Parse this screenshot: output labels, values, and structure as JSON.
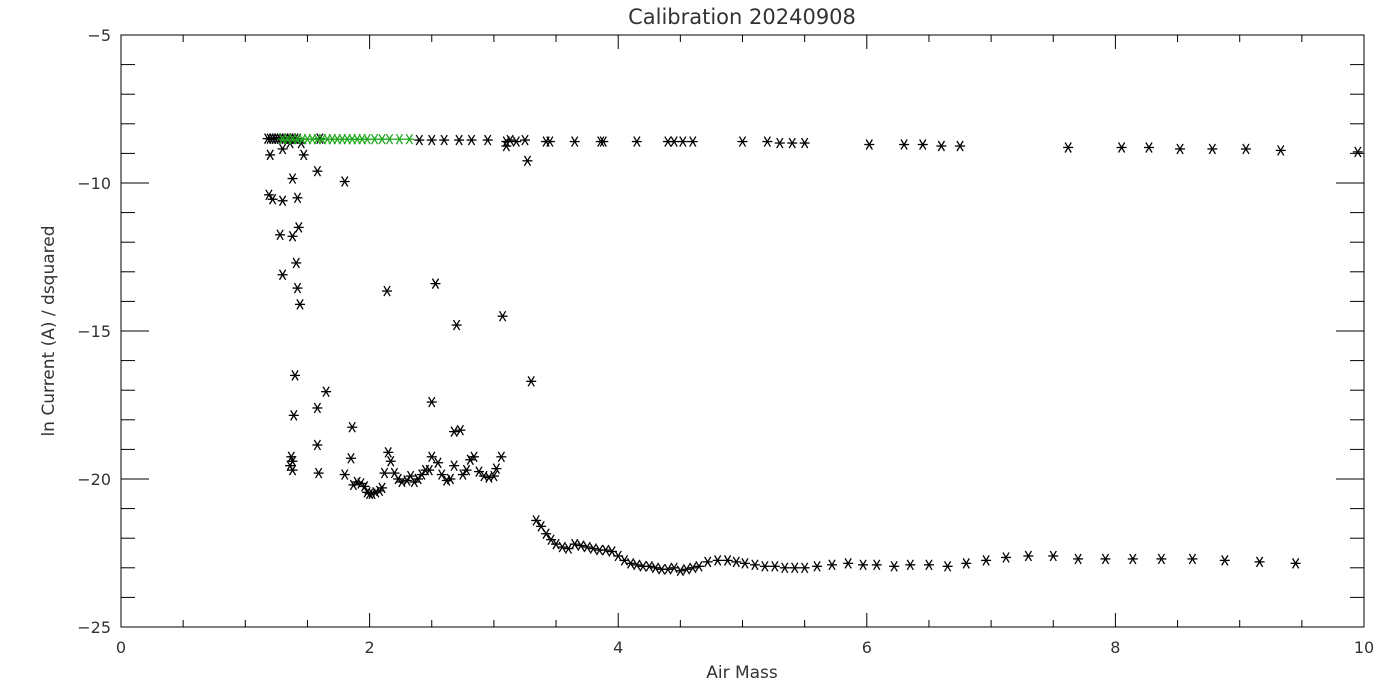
{
  "chart_data": {
    "type": "scatter",
    "title": "Calibration 20240908",
    "xlabel": "Air Mass",
    "ylabel": "ln Current (A) / dsquared",
    "xlim": [
      0,
      10
    ],
    "ylim": [
      -25,
      -5
    ],
    "x_ticks": [
      0,
      2,
      4,
      6,
      8,
      10
    ],
    "y_ticks": [
      -25,
      -20,
      -15,
      -10,
      -5
    ],
    "x_tick_labels": [
      "0",
      "2",
      "4",
      "6",
      "8",
      "10"
    ],
    "y_tick_labels": [
      "−25",
      "−20",
      "−15",
      "−10",
      "−5"
    ],
    "x_minor_step": 0.5,
    "y_minor_step": 1,
    "marker": "asterisk",
    "grid": false,
    "series": [
      {
        "color": "#000000",
        "points": [
          [
            1.18,
            -8.5
          ],
          [
            1.2,
            -8.5
          ],
          [
            1.22,
            -8.5
          ],
          [
            1.24,
            -8.5
          ],
          [
            1.26,
            -8.5
          ],
          [
            1.28,
            -8.5
          ],
          [
            1.3,
            -8.5
          ],
          [
            1.32,
            -8.5
          ],
          [
            1.34,
            -8.5
          ],
          [
            1.36,
            -8.5
          ],
          [
            1.38,
            -8.5
          ],
          [
            1.4,
            -8.5
          ],
          [
            1.42,
            -8.5
          ],
          [
            1.2,
            -9.05
          ],
          [
            1.3,
            -8.85
          ],
          [
            1.36,
            -8.65
          ],
          [
            1.45,
            -8.65
          ],
          [
            1.47,
            -9.05
          ],
          [
            1.58,
            -9.6
          ],
          [
            1.8,
            -9.95
          ],
          [
            1.19,
            -10.4
          ],
          [
            1.22,
            -10.55
          ],
          [
            1.3,
            -10.6
          ],
          [
            1.38,
            -9.85
          ],
          [
            1.42,
            -10.5
          ],
          [
            1.28,
            -11.75
          ],
          [
            1.38,
            -11.8
          ],
          [
            1.43,
            -11.5
          ],
          [
            1.41,
            -12.7
          ],
          [
            1.3,
            -13.1
          ],
          [
            1.42,
            -13.55
          ],
          [
            1.44,
            -14.1
          ],
          [
            2.14,
            -13.65
          ],
          [
            2.53,
            -13.4
          ],
          [
            2.7,
            -14.8
          ],
          [
            3.07,
            -14.5
          ],
          [
            1.4,
            -16.5
          ],
          [
            1.65,
            -17.05
          ],
          [
            1.58,
            -17.6
          ],
          [
            1.39,
            -17.85
          ],
          [
            2.5,
            -17.4
          ],
          [
            3.3,
            -16.7
          ],
          [
            1.86,
            -18.25
          ],
          [
            2.68,
            -18.4
          ],
          [
            2.73,
            -18.35
          ],
          [
            1.58,
            -18.85
          ],
          [
            1.37,
            -19.25
          ],
          [
            1.38,
            -19.4
          ],
          [
            1.36,
            -19.55
          ],
          [
            1.38,
            -19.7
          ],
          [
            1.59,
            -19.8
          ],
          [
            1.8,
            -19.85
          ],
          [
            1.85,
            -19.3
          ],
          [
            1.87,
            -20.2
          ],
          [
            1.9,
            -20.1
          ],
          [
            1.93,
            -20.15
          ],
          [
            1.96,
            -20.25
          ],
          [
            1.98,
            -20.45
          ],
          [
            2.0,
            -20.5
          ],
          [
            2.02,
            -20.5
          ],
          [
            2.05,
            -20.45
          ],
          [
            2.08,
            -20.4
          ],
          [
            2.1,
            -20.3
          ],
          [
            2.12,
            -19.8
          ],
          [
            2.15,
            -19.1
          ],
          [
            2.17,
            -19.4
          ],
          [
            2.2,
            -19.8
          ],
          [
            2.23,
            -20.0
          ],
          [
            2.26,
            -20.1
          ],
          [
            2.3,
            -20.05
          ],
          [
            2.33,
            -19.9
          ],
          [
            2.36,
            -20.1
          ],
          [
            2.39,
            -20.0
          ],
          [
            2.42,
            -19.85
          ],
          [
            2.45,
            -19.7
          ],
          [
            2.48,
            -19.7
          ],
          [
            2.5,
            -19.25
          ],
          [
            2.55,
            -19.45
          ],
          [
            2.58,
            -19.85
          ],
          [
            2.62,
            -20.05
          ],
          [
            2.65,
            -20.0
          ],
          [
            2.68,
            -19.55
          ],
          [
            2.75,
            -19.85
          ],
          [
            2.78,
            -19.7
          ],
          [
            2.81,
            -19.35
          ],
          [
            2.84,
            -19.25
          ],
          [
            2.88,
            -19.75
          ],
          [
            2.92,
            -19.9
          ],
          [
            2.96,
            -19.95
          ],
          [
            3.0,
            -19.9
          ],
          [
            3.02,
            -19.65
          ],
          [
            3.06,
            -19.25
          ],
          [
            3.34,
            -21.4
          ],
          [
            3.38,
            -21.6
          ],
          [
            3.42,
            -21.85
          ],
          [
            3.46,
            -22.05
          ],
          [
            3.5,
            -22.2
          ],
          [
            3.55,
            -22.3
          ],
          [
            3.6,
            -22.35
          ],
          [
            3.65,
            -22.2
          ],
          [
            3.7,
            -22.25
          ],
          [
            3.75,
            -22.3
          ],
          [
            3.8,
            -22.35
          ],
          [
            3.85,
            -22.4
          ],
          [
            3.9,
            -22.4
          ],
          [
            3.95,
            -22.45
          ],
          [
            4.0,
            -22.6
          ],
          [
            4.05,
            -22.75
          ],
          [
            4.1,
            -22.85
          ],
          [
            4.15,
            -22.9
          ],
          [
            4.2,
            -22.95
          ],
          [
            4.25,
            -22.95
          ],
          [
            4.3,
            -23.0
          ],
          [
            4.35,
            -23.05
          ],
          [
            4.4,
            -23.05
          ],
          [
            4.45,
            -23.0
          ],
          [
            4.5,
            -23.1
          ],
          [
            4.55,
            -23.05
          ],
          [
            4.6,
            -23.0
          ],
          [
            4.65,
            -22.95
          ],
          [
            4.72,
            -22.8
          ],
          [
            4.8,
            -22.75
          ],
          [
            4.88,
            -22.75
          ],
          [
            4.95,
            -22.8
          ],
          [
            5.02,
            -22.85
          ],
          [
            5.1,
            -22.9
          ],
          [
            5.18,
            -22.95
          ],
          [
            5.26,
            -22.95
          ],
          [
            5.34,
            -23.0
          ],
          [
            5.42,
            -23.0
          ],
          [
            5.5,
            -23.0
          ],
          [
            5.6,
            -22.95
          ],
          [
            5.72,
            -22.9
          ],
          [
            5.85,
            -22.85
          ],
          [
            5.97,
            -22.9
          ],
          [
            6.08,
            -22.9
          ],
          [
            6.22,
            -22.95
          ],
          [
            6.35,
            -22.9
          ],
          [
            6.5,
            -22.9
          ],
          [
            6.65,
            -22.95
          ],
          [
            6.8,
            -22.85
          ],
          [
            6.96,
            -22.75
          ],
          [
            7.12,
            -22.65
          ],
          [
            7.3,
            -22.6
          ],
          [
            7.5,
            -22.6
          ],
          [
            7.7,
            -22.7
          ],
          [
            7.92,
            -22.7
          ],
          [
            8.14,
            -22.7
          ],
          [
            8.37,
            -22.7
          ],
          [
            8.62,
            -22.7
          ],
          [
            8.88,
            -22.75
          ],
          [
            9.16,
            -22.8
          ],
          [
            9.45,
            -22.85
          ],
          [
            1.6,
            -8.5
          ],
          [
            2.4,
            -8.55
          ],
          [
            2.5,
            -8.55
          ],
          [
            2.6,
            -8.55
          ],
          [
            2.72,
            -8.55
          ],
          [
            2.82,
            -8.55
          ],
          [
            2.95,
            -8.55
          ],
          [
            3.1,
            -8.6
          ],
          [
            3.13,
            -8.55
          ],
          [
            3.18,
            -8.6
          ],
          [
            3.25,
            -8.55
          ],
          [
            3.1,
            -8.75
          ],
          [
            3.27,
            -9.25
          ],
          [
            3.42,
            -8.6
          ],
          [
            3.45,
            -8.6
          ],
          [
            3.65,
            -8.6
          ],
          [
            3.86,
            -8.6
          ],
          [
            3.88,
            -8.6
          ],
          [
            4.15,
            -8.6
          ],
          [
            4.4,
            -8.6
          ],
          [
            4.45,
            -8.6
          ],
          [
            4.52,
            -8.6
          ],
          [
            4.6,
            -8.6
          ],
          [
            5.0,
            -8.6
          ],
          [
            5.2,
            -8.6
          ],
          [
            5.3,
            -8.65
          ],
          [
            5.4,
            -8.65
          ],
          [
            5.5,
            -8.65
          ],
          [
            6.02,
            -8.7
          ],
          [
            6.3,
            -8.7
          ],
          [
            6.45,
            -8.7
          ],
          [
            6.6,
            -8.75
          ],
          [
            6.75,
            -8.75
          ],
          [
            7.62,
            -8.8
          ],
          [
            8.05,
            -8.8
          ],
          [
            8.27,
            -8.8
          ],
          [
            8.52,
            -8.85
          ],
          [
            8.78,
            -8.85
          ],
          [
            9.05,
            -8.85
          ],
          [
            9.33,
            -8.9
          ],
          [
            9.95,
            -8.95
          ]
        ]
      },
      {
        "color": "#1fa81f",
        "points": [
          [
            1.3,
            -8.52
          ],
          [
            1.34,
            -8.52
          ],
          [
            1.38,
            -8.52
          ],
          [
            1.42,
            -8.52
          ],
          [
            1.46,
            -8.52
          ],
          [
            1.5,
            -8.52
          ],
          [
            1.54,
            -8.52
          ],
          [
            1.58,
            -8.52
          ],
          [
            1.62,
            -8.52
          ],
          [
            1.66,
            -8.52
          ],
          [
            1.7,
            -8.52
          ],
          [
            1.74,
            -8.52
          ],
          [
            1.78,
            -8.52
          ],
          [
            1.82,
            -8.52
          ],
          [
            1.86,
            -8.52
          ],
          [
            1.9,
            -8.52
          ],
          [
            1.94,
            -8.52
          ],
          [
            1.98,
            -8.52
          ],
          [
            2.04,
            -8.52
          ],
          [
            2.1,
            -8.52
          ],
          [
            2.16,
            -8.52
          ],
          [
            2.24,
            -8.52
          ],
          [
            2.32,
            -8.52
          ]
        ]
      }
    ]
  }
}
